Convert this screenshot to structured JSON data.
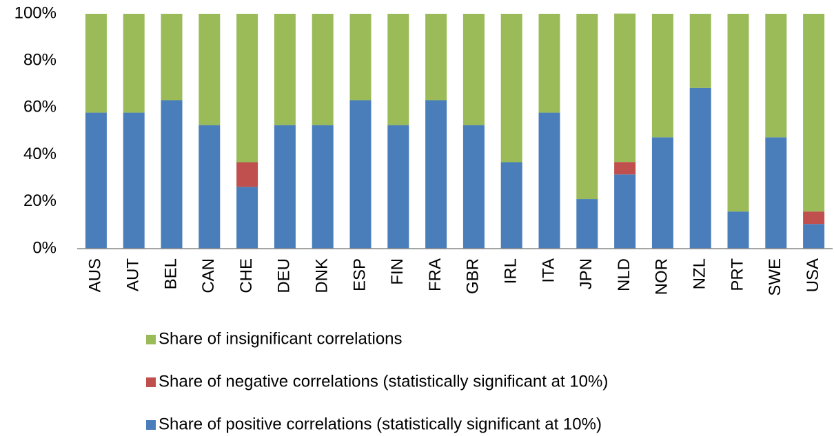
{
  "chart_data": {
    "type": "stacked_bar",
    "categories": [
      "AUS",
      "AUT",
      "BEL",
      "CAN",
      "CHE",
      "DEU",
      "DNK",
      "ESP",
      "FIN",
      "FRA",
      "GBR",
      "IRL",
      "ITA",
      "JPN",
      "NLD",
      "NOR",
      "NZL",
      "PRT",
      "SWE",
      "USA"
    ],
    "series": [
      {
        "name": "Share of positive correlations (statistically significant at 10%)",
        "color": "#4a7ebb",
        "values": [
          57.9,
          57.9,
          63.2,
          52.6,
          26.3,
          52.6,
          52.6,
          63.2,
          52.6,
          63.2,
          52.6,
          36.8,
          57.9,
          21.1,
          31.6,
          47.4,
          68.4,
          15.8,
          47.4,
          10.5
        ]
      },
      {
        "name": "Share of negative correlations (statistically significant at 10%)",
        "color": "#c0504d",
        "values": [
          0,
          0,
          0,
          0,
          10.5,
          0,
          0,
          0,
          0,
          0,
          0,
          0,
          0,
          0,
          5.3,
          0,
          0,
          0,
          0,
          5.3
        ]
      },
      {
        "name": "Share of insignificant correlations",
        "color": "#9bbb59",
        "values": [
          42.1,
          42.1,
          36.8,
          47.4,
          63.2,
          47.4,
          47.4,
          36.8,
          47.4,
          36.8,
          47.4,
          63.2,
          42.1,
          78.9,
          63.2,
          52.6,
          31.6,
          84.2,
          52.6,
          84.2
        ]
      }
    ],
    "ylim": [
      0,
      100
    ],
    "yticks": [
      {
        "value": 0,
        "label": "0%"
      },
      {
        "value": 20,
        "label": "20%"
      },
      {
        "value": 40,
        "label": "40%"
      },
      {
        "value": 60,
        "label": "60%"
      },
      {
        "value": 80,
        "label": "80%"
      },
      {
        "value": 100,
        "label": "100%"
      }
    ],
    "grid": false
  }
}
